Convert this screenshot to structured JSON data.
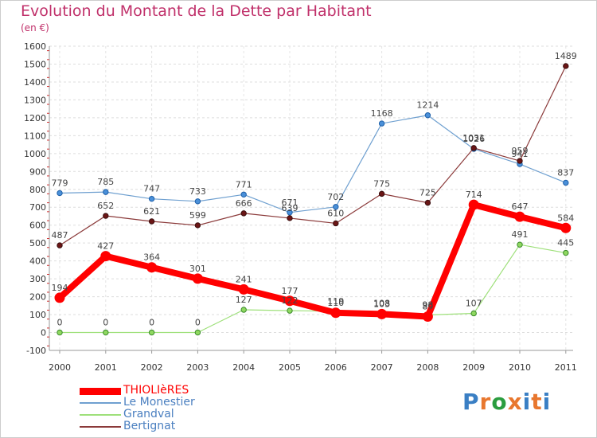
{
  "header": {
    "title": "Evolution du Montant de la Dette par Habitant",
    "unit": "(en €)"
  },
  "logo": {
    "letters": [
      "P",
      "r",
      "o",
      "x",
      "i",
      "t",
      "i"
    ],
    "colors": [
      "#3a7fc4",
      "#e8772e",
      "#2a9d3f",
      "#e8772e",
      "#3a7fc4",
      "#e8772e",
      "#3a7fc4"
    ]
  },
  "chart_data": {
    "type": "line",
    "x": [
      "2000",
      "2001",
      "2002",
      "2003",
      "2004",
      "2005",
      "2006",
      "2007",
      "2008",
      "2009",
      "2010",
      "2011"
    ],
    "ylim": [
      -100,
      1600
    ],
    "yticks": [
      "-100",
      "0",
      "100",
      "200",
      "300",
      "400",
      "500",
      "600",
      "700",
      "800",
      "900",
      "1000",
      "1100",
      "1200",
      "1300",
      "1400",
      "1500",
      "1600"
    ],
    "grid": true,
    "legend_position": "bottom-left",
    "series": [
      {
        "name": "THIOLIèRES",
        "color": "#ff0000",
        "values": [
          194,
          427,
          364,
          301,
          241,
          177,
          110,
          103,
          89,
          714,
          647,
          584
        ],
        "labels": [
          "194",
          "427",
          "364",
          "301",
          "241",
          "177",
          "110",
          "103",
          "89",
          "714",
          "647",
          "584"
        ]
      },
      {
        "name": "Le Monestier",
        "color": "#6fa0d0",
        "values": [
          779,
          785,
          747,
          733,
          771,
          671,
          702,
          1168,
          1214,
          1026,
          941,
          837
        ],
        "labels": [
          "779",
          "785",
          "747",
          "733",
          "771",
          "671",
          "702",
          "1168",
          "1214",
          "1026",
          "941",
          "837"
        ]
      },
      {
        "name": "Grandval",
        "color": "#9ee07a",
        "values": [
          0,
          0,
          0,
          0,
          127,
          122,
          119,
          108,
          98,
          107,
          491,
          445
        ],
        "labels": [
          "0",
          "0",
          "0",
          "0",
          "127",
          "122",
          "119",
          "108",
          "98",
          "107",
          "491",
          "445"
        ]
      },
      {
        "name": "Bertignat",
        "color": "#8b3a3a",
        "values": [
          487,
          652,
          621,
          599,
          666,
          639,
          610,
          775,
          725,
          1031,
          959,
          1489
        ],
        "labels": [
          "487",
          "652",
          "621",
          "599",
          "666",
          "639",
          "610",
          "775",
          "725",
          "1031",
          "959",
          "1489"
        ]
      }
    ]
  }
}
